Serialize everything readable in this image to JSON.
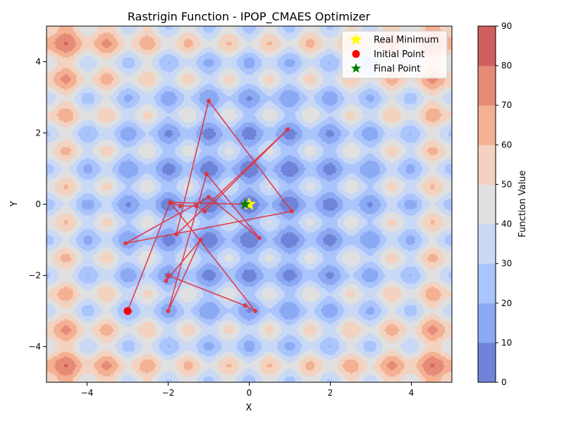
{
  "chart_data": {
    "type": "contour",
    "title": "Rastrigin Function - IPOP_CMAES Optimizer",
    "xlabel": "X",
    "ylabel": "Y",
    "xlim": [
      -5,
      5
    ],
    "ylim": [
      -5,
      5
    ],
    "xticks": [
      -4,
      -2,
      0,
      2,
      4
    ],
    "xtick_labels": [
      "−4",
      "−2",
      "0",
      "2",
      "4"
    ],
    "yticks": [
      -4,
      -2,
      0,
      2,
      4
    ],
    "ytick_labels": [
      "−4",
      "−2",
      "0",
      "2",
      "4"
    ],
    "colorbar": {
      "label": "Function Value",
      "levels": [
        0,
        10,
        20,
        30,
        40,
        50,
        60,
        70,
        80,
        90
      ],
      "tick_labels": [
        "0",
        "10",
        "20",
        "30",
        "40",
        "50",
        "60",
        "70",
        "80",
        "90"
      ],
      "colors": [
        "#6f84d8",
        "#8ca9f3",
        "#aac4fc",
        "#c8d8f5",
        "#e0e0e0",
        "#f3d2c0",
        "#f4b093",
        "#e58b76",
        "#d0605e"
      ]
    },
    "legend": {
      "placement": "top-right",
      "entries": [
        {
          "label": "Real Minimum",
          "marker": "star",
          "color": "#ffff00"
        },
        {
          "label": "Initial Point",
          "marker": "circle",
          "color": "#ff0000"
        },
        {
          "label": "Final Point",
          "marker": "star",
          "color": "#008000"
        }
      ]
    },
    "path": {
      "color": "#e0303a",
      "points": [
        [
          -3.0,
          -3.0
        ],
        [
          -1.95,
          0.05
        ],
        [
          -1.7,
          -0.05
        ],
        [
          -1.3,
          -0.05
        ],
        [
          -1.1,
          -0.2
        ],
        [
          0.95,
          2.1
        ],
        [
          -1.8,
          -0.85
        ],
        [
          -1.0,
          2.9
        ],
        [
          1.05,
          -0.2
        ],
        [
          -3.05,
          -1.1
        ],
        [
          -1.0,
          0.2
        ],
        [
          0.25,
          -0.95
        ],
        [
          -1.05,
          0.85
        ],
        [
          -2.0,
          -3.0
        ],
        [
          -1.2,
          -1.0
        ],
        [
          -2.05,
          -2.15
        ],
        [
          -2.0,
          -2.0
        ],
        [
          -0.1,
          -2.85
        ],
        [
          0.15,
          -3.0
        ],
        [
          -1.95,
          0.05
        ],
        [
          -0.1,
          0.0
        ]
      ]
    },
    "real_minimum": [
      0,
      0
    ],
    "initial_point": [
      -3.0,
      -3.0
    ],
    "final_point": [
      -0.1,
      0.0
    ]
  }
}
